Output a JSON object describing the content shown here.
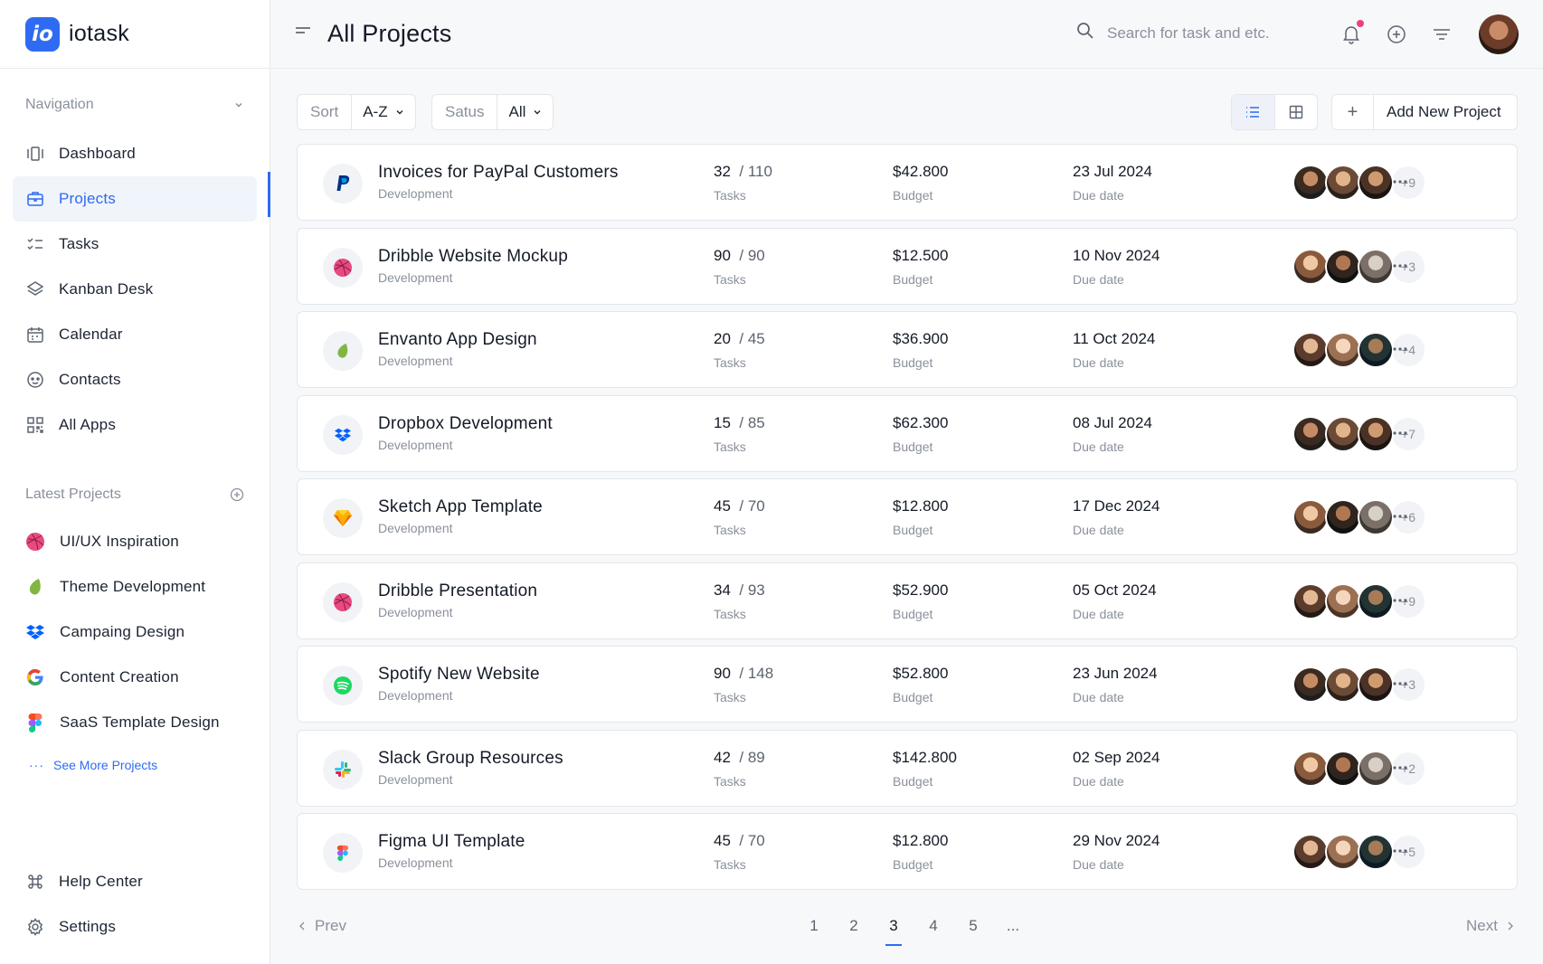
{
  "brand": {
    "logo_text": "io",
    "name": "iotask"
  },
  "header": {
    "title": "All Projects",
    "search_placeholder": "Search for task and etc."
  },
  "sidebar": {
    "nav_heading": "Navigation",
    "nav_items": [
      {
        "label": "Dashboard",
        "icon": "dashboard-icon"
      },
      {
        "label": "Projects",
        "icon": "briefcase-icon",
        "active": true
      },
      {
        "label": "Tasks",
        "icon": "checklist-icon"
      },
      {
        "label": "Kanban Desk",
        "icon": "layers-icon"
      },
      {
        "label": "Calendar",
        "icon": "calendar-icon"
      },
      {
        "label": "Contacts",
        "icon": "contacts-icon"
      },
      {
        "label": "All Apps",
        "icon": "apps-grid-icon"
      }
    ],
    "projects_heading": "Latest Projects",
    "latest_projects": [
      {
        "label": "UI/UX Inspiration",
        "icon": "dribbble-icon"
      },
      {
        "label": "Theme Development",
        "icon": "envato-icon"
      },
      {
        "label": "Campaing Design",
        "icon": "dropbox-icon"
      },
      {
        "label": "Content Creation",
        "icon": "google-icon"
      },
      {
        "label": "SaaS Template Design",
        "icon": "figma-icon"
      }
    ],
    "see_more": "See More Projects",
    "bottom_items": [
      {
        "label": "Help Center",
        "icon": "command-icon"
      },
      {
        "label": "Settings",
        "icon": "gear-icon"
      }
    ]
  },
  "toolbar": {
    "sort_label": "Sort",
    "sort_value": "A-Z",
    "status_label": "Satus",
    "status_value": "All",
    "add_label": "Add New Project"
  },
  "colors": {
    "accent": "#2f6bf2",
    "notification": "#f0407a"
  },
  "projects": [
    {
      "name": "Invoices for PayPal Customers",
      "category": "Development",
      "done": "32",
      "total": "/ 110",
      "tasks_label": "Tasks",
      "budget": "$42.800",
      "budget_label": "Budget",
      "due": "23 Jul 2024",
      "due_label": "Due date",
      "more": "+9",
      "icon": "paypal-icon"
    },
    {
      "name": "Dribble Website Mockup",
      "category": "Development",
      "done": "90",
      "total": "/ 90",
      "tasks_label": "Tasks",
      "budget": "$12.500",
      "budget_label": "Budget",
      "due": "10 Nov 2024",
      "due_label": "Due date",
      "more": "+3",
      "icon": "dribbble-icon"
    },
    {
      "name": "Envanto App Design",
      "category": "Development",
      "done": "20",
      "total": "/ 45",
      "tasks_label": "Tasks",
      "budget": "$36.900",
      "budget_label": "Budget",
      "due": "11 Oct 2024",
      "due_label": "Due date",
      "more": "+4",
      "icon": "envato-icon"
    },
    {
      "name": "Dropbox Development",
      "category": "Development",
      "done": "15",
      "total": "/ 85",
      "tasks_label": "Tasks",
      "budget": "$62.300",
      "budget_label": "Budget",
      "due": "08 Jul 2024",
      "due_label": "Due date",
      "more": "+7",
      "icon": "dropbox-icon"
    },
    {
      "name": "Sketch App Template",
      "category": "Development",
      "done": "45",
      "total": "/ 70",
      "tasks_label": "Tasks",
      "budget": "$12.800",
      "budget_label": "Budget",
      "due": "17 Dec 2024",
      "due_label": "Due date",
      "more": "+6",
      "icon": "sketch-icon"
    },
    {
      "name": "Dribble Presentation",
      "category": "Development",
      "done": "34",
      "total": "/ 93",
      "tasks_label": "Tasks",
      "budget": "$52.900",
      "budget_label": "Budget",
      "due": "05 Oct 2024",
      "due_label": "Due date",
      "more": "+9",
      "icon": "dribbble-icon"
    },
    {
      "name": "Spotify New Website",
      "category": "Development",
      "done": "90",
      "total": "/ 148",
      "tasks_label": "Tasks",
      "budget": "$52.800",
      "budget_label": "Budget",
      "due": "23 Jun 2024",
      "due_label": "Due date",
      "more": "+3",
      "icon": "spotify-icon"
    },
    {
      "name": "Slack Group Resources",
      "category": "Development",
      "done": "42",
      "total": "/ 89",
      "tasks_label": "Tasks",
      "budget": "$142.800",
      "budget_label": "Budget",
      "due": "02 Sep 2024",
      "due_label": "Due date",
      "more": "+2",
      "icon": "slack-icon"
    },
    {
      "name": "Figma UI Template",
      "category": "Development",
      "done": "45",
      "total": "/ 70",
      "tasks_label": "Tasks",
      "budget": "$12.800",
      "budget_label": "Budget",
      "due": "29 Nov 2024",
      "due_label": "Due date",
      "more": "+5",
      "icon": "figma-icon"
    }
  ],
  "pagination": {
    "prev": "Prev",
    "next": "Next",
    "pages": [
      "1",
      "2",
      "3",
      "4",
      "5",
      "..."
    ],
    "current": "3"
  }
}
